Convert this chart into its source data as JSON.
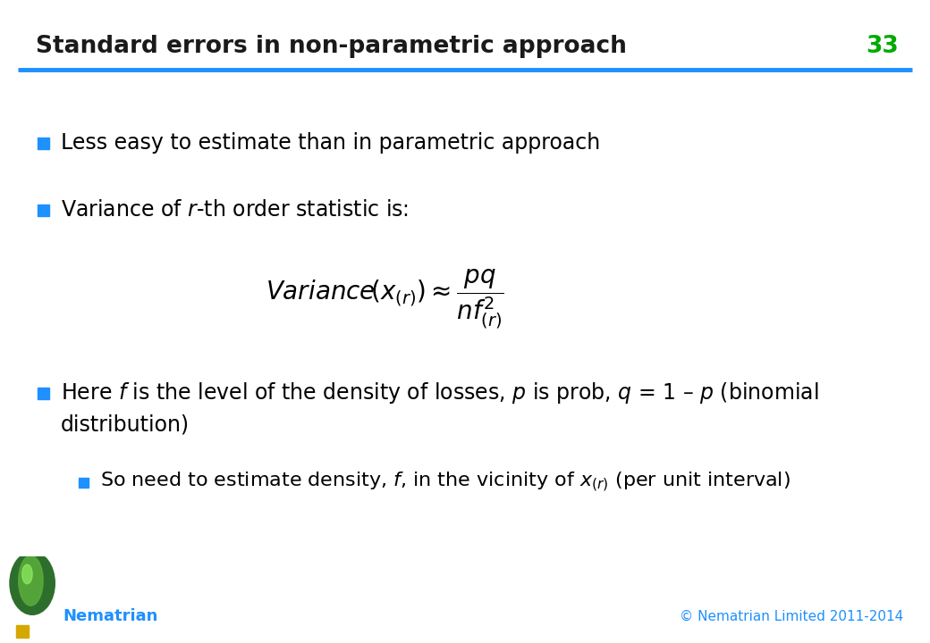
{
  "title": "Standard errors in non-parametric approach",
  "slide_number": "33",
  "title_color": "#1a1a1a",
  "title_fontsize": 19,
  "slide_number_color": "#00AA00",
  "header_line_color": "#1E90FF",
  "background_color": "#FFFFFF",
  "bullet_color": "#1E90FF",
  "bullet1": "Less easy to estimate than in parametric approach",
  "bullet2": "Variance of $\\mathit{r}$-th order statistic is:",
  "formula": "$\\mathit{Variance}\\!\\left(x_{(r)}\\right) \\approx \\dfrac{pq}{nf^2_{(r)}}$",
  "bullet3_line1": "Here $\\mathit{f}$ is the level of the density of losses, $\\mathit{p}$ is prob, $\\mathit{q}$ = 1 – $\\mathit{p}$ (binomial",
  "bullet3_line2": "distribution)",
  "sub_bullet": "So need to estimate density, $\\mathit{f}$, in the vicinity of $x_{(r)}$ (per unit interval)",
  "footer_left_color": "#1E90FF",
  "footer_right_color": "#1E90FF",
  "footer_left": "Nematrian",
  "footer_right": "© Nematrian Limited 2011-2014",
  "body_fontsize": 17,
  "sub_bullet_fontsize": 16,
  "formula_fontsize": 20
}
